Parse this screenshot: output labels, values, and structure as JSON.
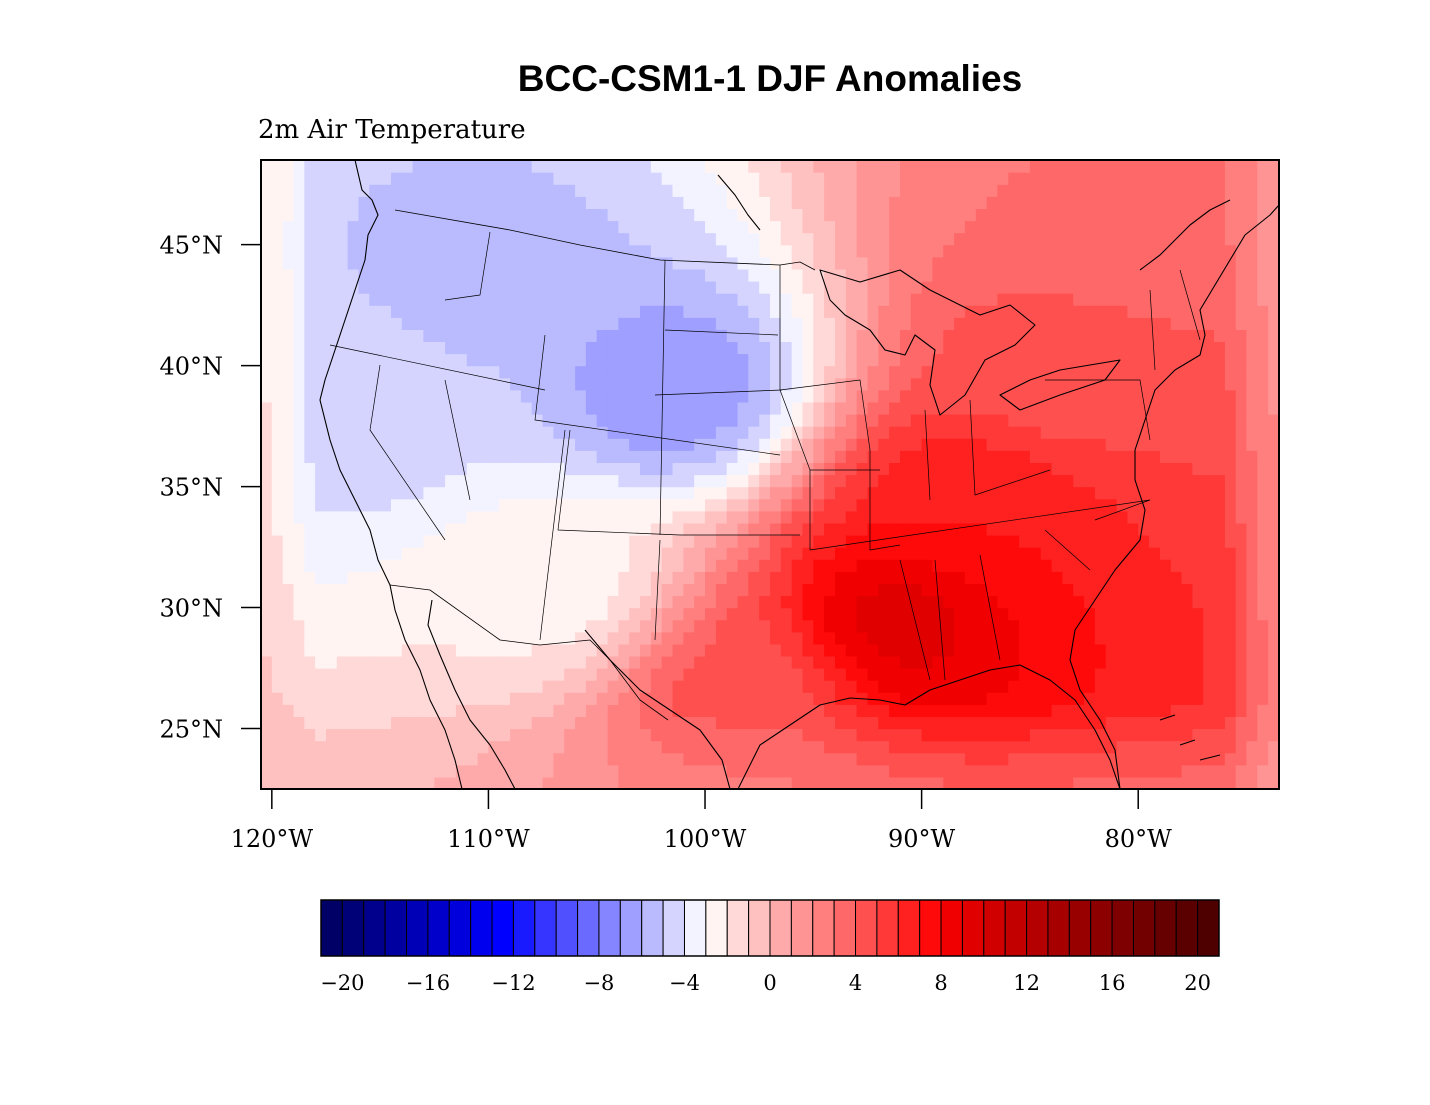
{
  "title": "BCC-CSM1-1 DJF Anomalies",
  "subtitle": "2m Air Temperature",
  "map": {
    "region": "Continental United States",
    "projection": "cylindrical equidistant",
    "lon_range": [
      -120.5,
      -73.5
    ],
    "lat_range": [
      22.5,
      48.5
    ],
    "lat_ticks": [
      {
        "value": 45,
        "label": "45°N"
      },
      {
        "value": 40,
        "label": "40°N"
      },
      {
        "value": 35,
        "label": "35°N"
      },
      {
        "value": 30,
        "label": "30°N"
      },
      {
        "value": 25,
        "label": "25°N"
      }
    ],
    "lon_ticks": [
      {
        "value": -120,
        "label": "120°W"
      },
      {
        "value": -110,
        "label": "110°W"
      },
      {
        "value": -100,
        "label": "100°W"
      },
      {
        "value": -90,
        "label": "90°W"
      },
      {
        "value": -80,
        "label": "80°W"
      }
    ]
  },
  "chart_data": {
    "type": "heatmap",
    "title": "BCC-CSM1-1 DJF Anomalies",
    "subtitle": "2m Air Temperature",
    "variable": "2m Air Temperature",
    "units": "",
    "anomaly_centers": [
      {
        "lon": -101.5,
        "lat": 39.0,
        "value": -7.0
      },
      {
        "lon": -110.0,
        "lat": 43.5,
        "value": -5.5
      },
      {
        "lon": -115.0,
        "lat": 38.0,
        "value": -4.5
      },
      {
        "lon": -107.0,
        "lat": 31.0,
        "value": -2.5
      },
      {
        "lon": -91.0,
        "lat": 29.5,
        "value": 9.5
      },
      {
        "lon": -88.0,
        "lat": 34.0,
        "value": 7.0
      },
      {
        "lon": -84.0,
        "lat": 40.0,
        "value": 4.5
      },
      {
        "lon": -82.0,
        "lat": 46.5,
        "value": 3.0
      },
      {
        "lon": -98.0,
        "lat": 26.5,
        "value": 4.5
      }
    ],
    "colorbar": {
      "min": -21,
      "max": 21,
      "step": 1,
      "tick_values": [
        -20,
        -16,
        -12,
        -8,
        -4,
        0,
        4,
        8,
        12,
        16,
        20
      ],
      "tick_labels": [
        "−20",
        "−16",
        "−12",
        "−8",
        "−4",
        "0",
        "4",
        "8",
        "12",
        "16",
        "20"
      ],
      "colors": [
        "#000066",
        "#000077",
        "#00008c",
        "#0000a1",
        "#0000b6",
        "#0000ca",
        "#0000dc",
        "#0000ee",
        "#0000ff",
        "#1a1aff",
        "#3535ff",
        "#5050ff",
        "#6a6aff",
        "#8585ff",
        "#9f9fff",
        "#babaff",
        "#d4d4ff",
        "#f3f3ff",
        "#fff4f2",
        "#ffd8d8",
        "#ffc0c0",
        "#ffaaaa",
        "#ff9494",
        "#ff7f7f",
        "#ff6868",
        "#ff5050",
        "#ff3838",
        "#ff2020",
        "#ff0a0a",
        "#f00000",
        "#e00000",
        "#d00000",
        "#c20000",
        "#b40000",
        "#a60000",
        "#980000",
        "#8c0000",
        "#7e0000",
        "#720000",
        "#660000",
        "#5a0000",
        "#4e0000"
      ]
    }
  }
}
